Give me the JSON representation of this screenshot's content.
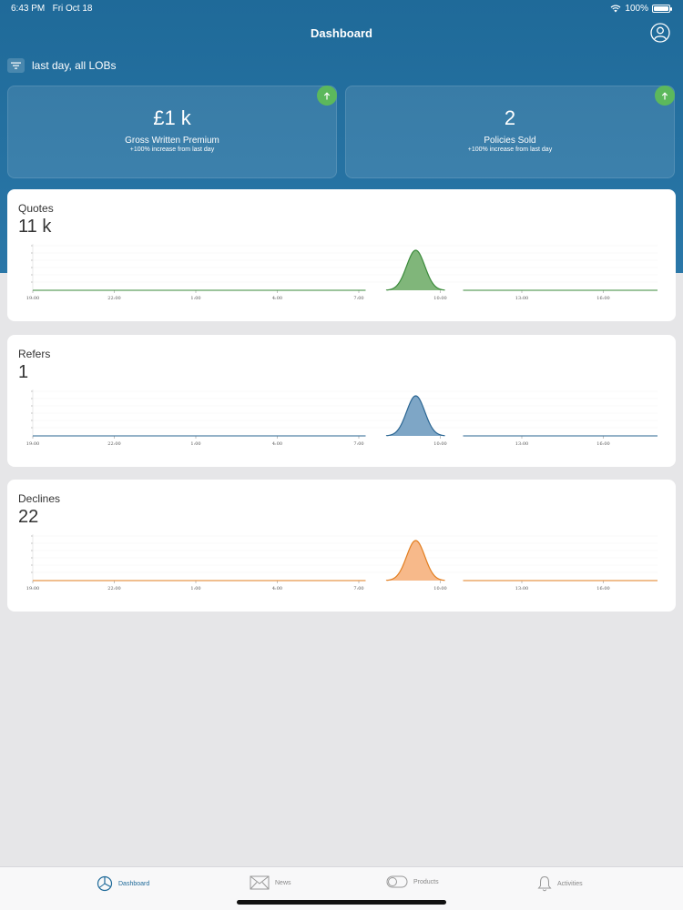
{
  "status_bar": {
    "time": "6:43 PM",
    "date": "Fri Oct 18",
    "battery": "100%"
  },
  "nav": {
    "title": "Dashboard"
  },
  "filter": {
    "label": "last day, all LOBs"
  },
  "kpis": [
    {
      "value": "£1 k",
      "label": "Gross Written Premium",
      "change": "+100% increase  from last day",
      "trend": "up"
    },
    {
      "value": "2",
      "label": "Policies Sold",
      "change": "+100% increase  from last day",
      "trend": "up"
    }
  ],
  "charts": [
    {
      "title": "Quotes",
      "value": "11 k",
      "color": "#3a8a3a",
      "fill": "#80b67a"
    },
    {
      "title": "Refers",
      "value": "1",
      "color": "#2a6592",
      "fill": "#7ea6c6"
    },
    {
      "title": "Declines",
      "value": "22",
      "color": "#e27d1e",
      "fill": "#f7b98a"
    }
  ],
  "chart_data": [
    {
      "type": "area",
      "x": [
        "19:00",
        "22:00",
        "1:00",
        "4:00",
        "7:00",
        "10:00",
        "13:00",
        "16:00"
      ],
      "series": [
        {
          "values": [
            0,
            0,
            0,
            0,
            0,
            1,
            0,
            0
          ]
        }
      ]
    },
    {
      "type": "area",
      "x": [
        "19:00",
        "22:00",
        "1:00",
        "4:00",
        "7:00",
        "10:00",
        "13:00",
        "16:00"
      ],
      "series": [
        {
          "values": [
            0,
            0,
            0,
            0,
            0,
            1,
            0,
            0
          ]
        }
      ]
    },
    {
      "type": "area",
      "x": [
        "19:00",
        "22:00",
        "1:00",
        "4:00",
        "7:00",
        "10:00",
        "13:00",
        "16:00"
      ],
      "series": [
        {
          "values": [
            0,
            0,
            0,
            0,
            0,
            1,
            0,
            0
          ]
        }
      ]
    }
  ],
  "tabs": [
    {
      "label": "Dashboard",
      "icon": "pie-chart-icon",
      "active": true
    },
    {
      "label": "News",
      "icon": "envelope-icon",
      "active": false
    },
    {
      "label": "Products",
      "icon": "toggle-icon",
      "active": false
    },
    {
      "label": "Activities",
      "icon": "bell-icon",
      "active": false
    }
  ],
  "colors": {
    "header": "#1f6a99",
    "badge": "#5cb85c",
    "active_tab": "#1f6a99"
  }
}
